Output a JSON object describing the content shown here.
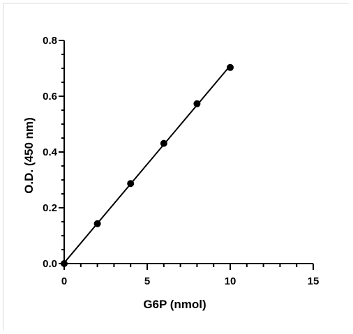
{
  "chart_data": {
    "type": "scatter",
    "title": "",
    "xlabel": "G6P (nmol)",
    "ylabel": "O.D. (450 nm)",
    "xlim": [
      0,
      15
    ],
    "ylim": [
      0,
      0.8
    ],
    "x_ticks": [
      "0",
      "5",
      "10",
      "15"
    ],
    "y_ticks": [
      "0.0",
      "0.2",
      "0.4",
      "0.6",
      "0.8"
    ],
    "grid": false,
    "series": [
      {
        "x": [
          0,
          2,
          4,
          6,
          8,
          10
        ],
        "values": [
          0.0,
          0.143,
          0.287,
          0.431,
          0.573,
          0.703
        ],
        "marker": "filled-circle",
        "line": "linear-fit",
        "color": "#000000"
      }
    ]
  }
}
